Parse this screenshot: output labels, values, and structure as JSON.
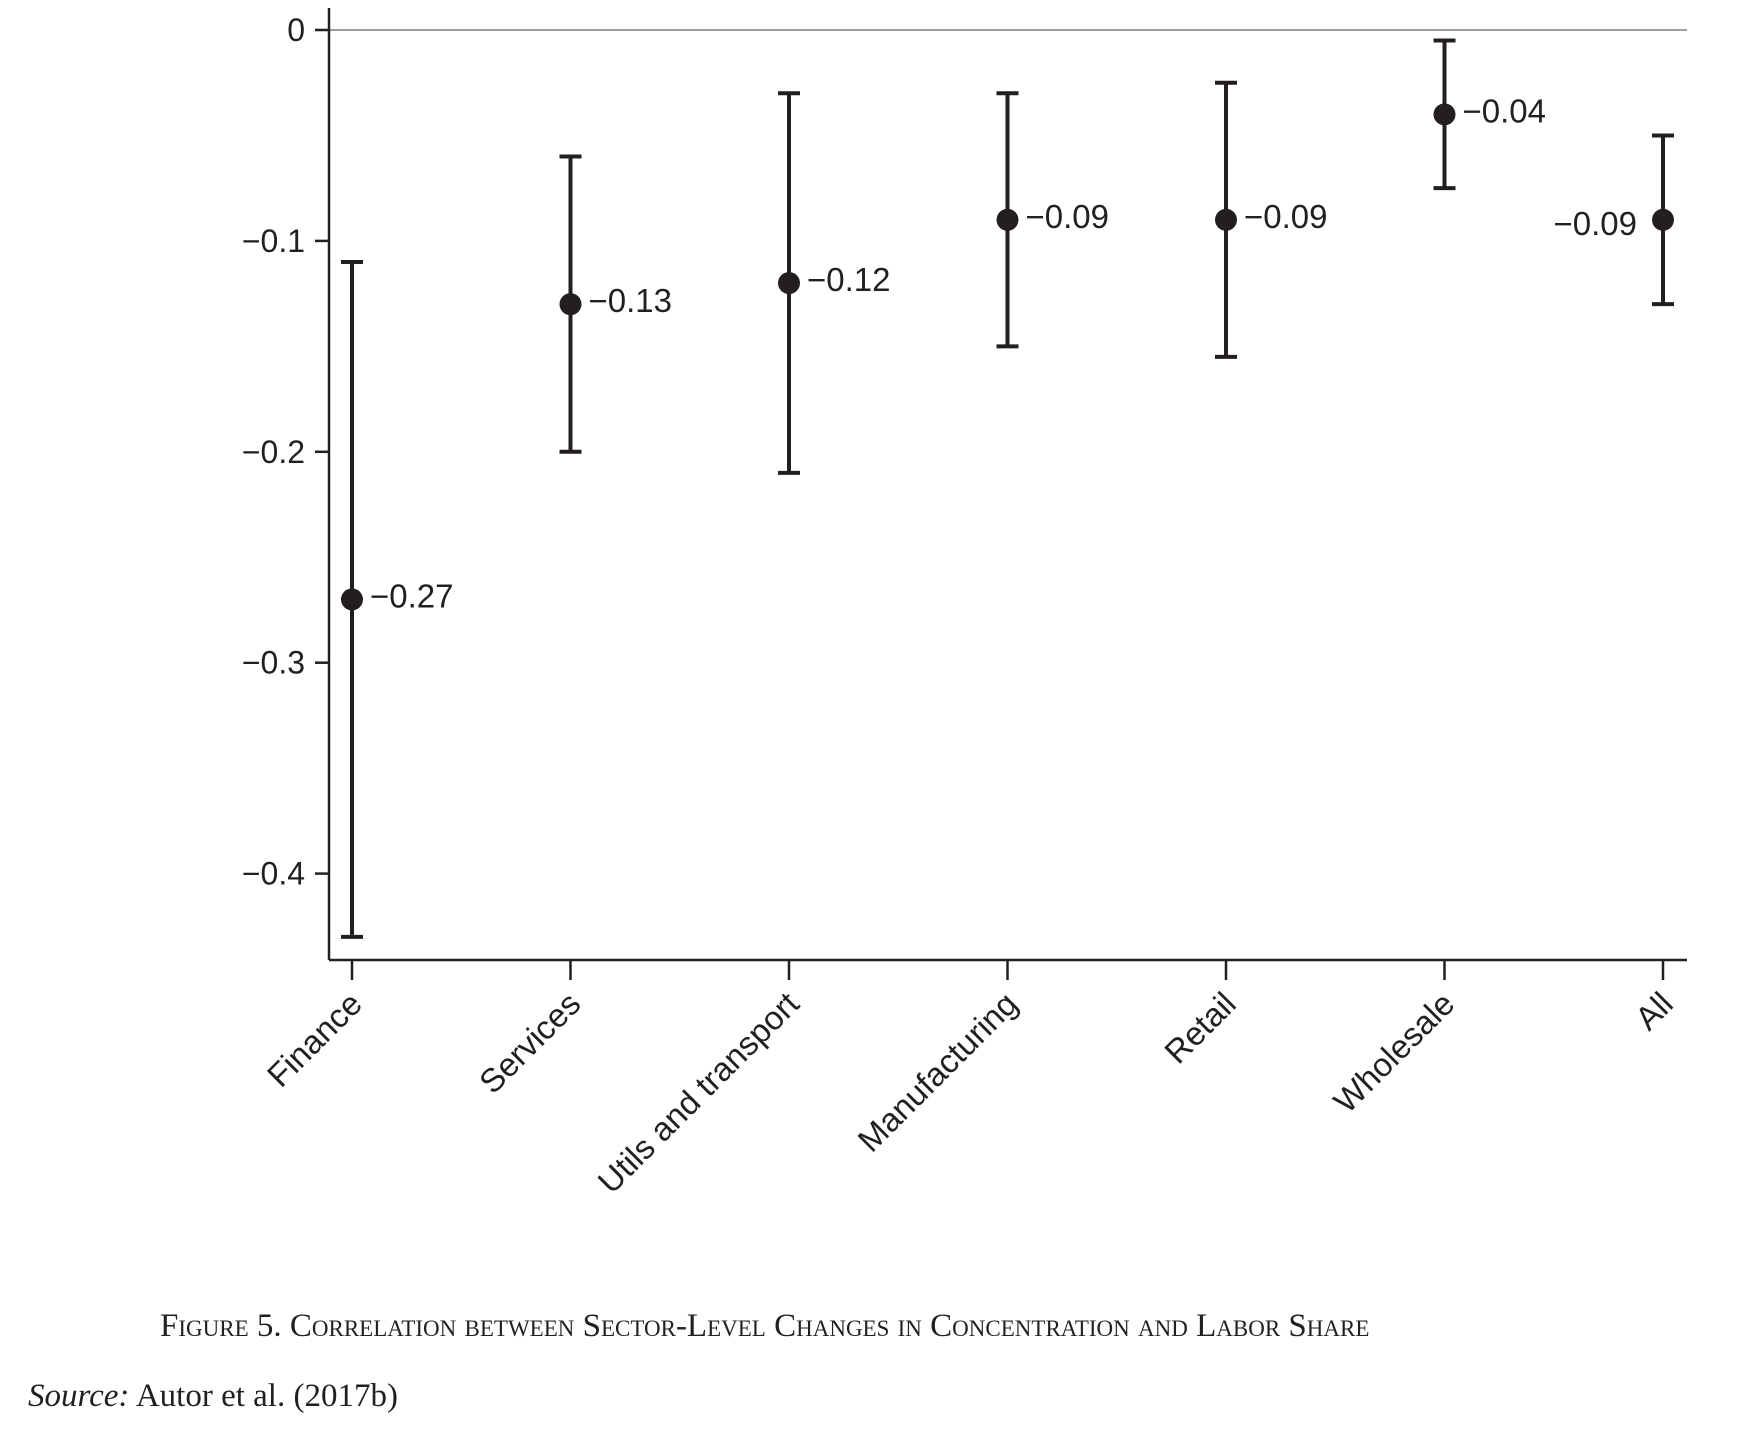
{
  "chart_data": {
    "type": "scatter",
    "title": "",
    "xlabel": "",
    "ylabel": "",
    "ylim": [
      -0.44,
      0.0
    ],
    "yticks": [
      0,
      -0.1,
      -0.2,
      -0.3,
      -0.4
    ],
    "ytick_labels": [
      "0",
      "−0.1",
      "−0.2",
      "−0.3",
      "−0.4"
    ],
    "categories": [
      "Finance",
      "Services",
      "Utils and transport",
      "Manufacturing",
      "Retail",
      "Wholesale",
      "All"
    ],
    "values": [
      -0.27,
      -0.13,
      -0.12,
      -0.09,
      -0.09,
      -0.04,
      -0.09
    ],
    "ci_lower": [
      -0.43,
      -0.2,
      -0.21,
      -0.15,
      -0.155,
      -0.075,
      -0.13
    ],
    "ci_upper": [
      -0.11,
      -0.06,
      -0.03,
      -0.03,
      -0.025,
      -0.005,
      -0.05
    ],
    "value_labels": [
      "−0.27",
      "−0.13",
      "−0.12",
      "−0.09",
      "−0.09",
      "−0.04",
      "−0.09"
    ],
    "reference_line": 0,
    "colors": {
      "marker": "#231f20",
      "axis": "#231f20",
      "refline": "#9d9d9d"
    }
  },
  "caption": {
    "text": "Figure 5. Correlation between Sector-Level Changes in Concentration and Labor Share"
  },
  "source": {
    "label": "Source:",
    "text": " Autor et al. (2017b)"
  }
}
